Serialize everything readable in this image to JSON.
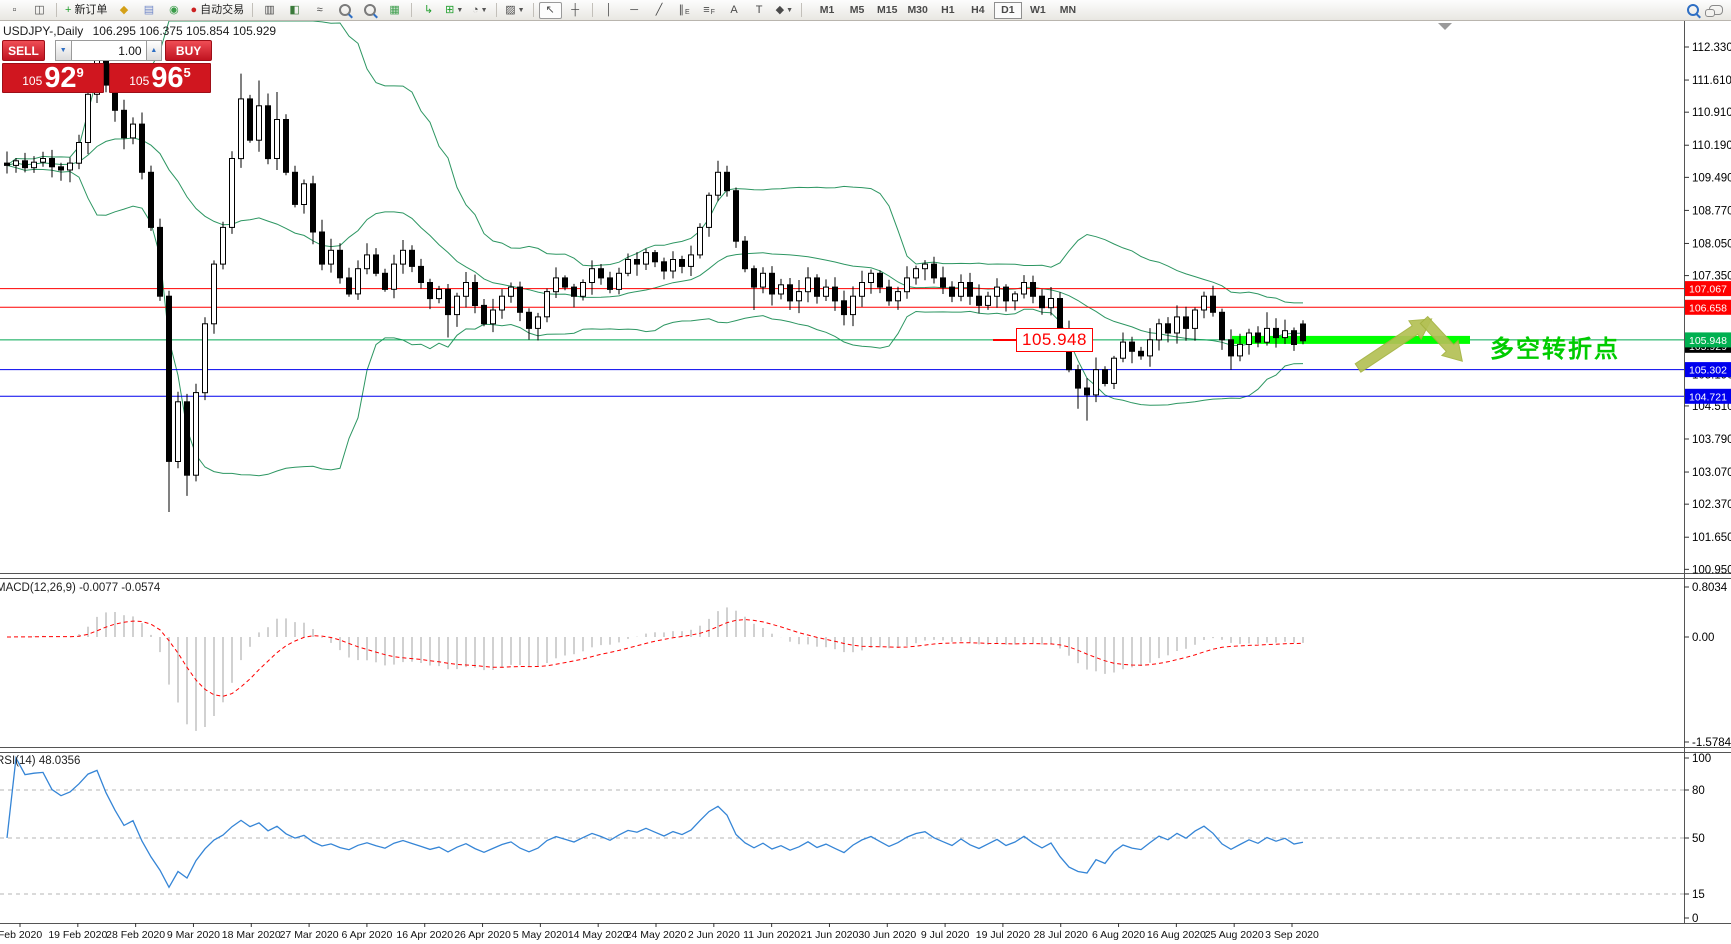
{
  "toolbar": {
    "buttons": [
      {
        "name": "new-chart",
        "glyph": "▫"
      },
      {
        "name": "chart-profile",
        "glyph": "◫"
      },
      {
        "name": "sep1",
        "sep": true
      },
      {
        "name": "new-order",
        "glyph": "+",
        "color": "#1f9e2c",
        "label": "新订单"
      },
      {
        "name": "market-watch",
        "glyph": "◆",
        "color": "#d4a017"
      },
      {
        "name": "data-window",
        "glyph": "▤",
        "color": "#6f86c8"
      },
      {
        "name": "navigator",
        "glyph": "◉",
        "color": "#3a9d4a"
      },
      {
        "name": "auto-trading",
        "glyph": "●",
        "color": "#cc2222",
        "label": "自动交易"
      },
      {
        "name": "sep2",
        "sep": true
      },
      {
        "name": "bar-chart-mode",
        "glyph": "▥"
      },
      {
        "name": "candlestick-mode",
        "glyph": "◧",
        "color": "#3a7a3a"
      },
      {
        "name": "line-chart-mode",
        "glyph": "≈"
      },
      {
        "name": "zoom-in",
        "mag": "+"
      },
      {
        "name": "zoom-out",
        "mag": "−"
      },
      {
        "name": "tile-windows",
        "glyph": "▦",
        "color": "#3a9d4a"
      },
      {
        "name": "sep3",
        "sep": true
      },
      {
        "name": "indicators",
        "glyph": "↳",
        "color": "#1f9e2c"
      },
      {
        "name": "indicator-list",
        "glyph": "⊞",
        "color": "#1f9e2c",
        "dropdown": true
      },
      {
        "name": "periods",
        "glyph": "◔",
        "dropdown": true
      },
      {
        "name": "sep4",
        "sep": true
      },
      {
        "name": "templates",
        "glyph": "▨",
        "dropdown": true
      },
      {
        "name": "sep5",
        "sep": true
      },
      {
        "name": "cursor",
        "glyph": "↖",
        "pressed": true
      },
      {
        "name": "crosshair",
        "glyph": "┼"
      },
      {
        "name": "sep6",
        "sep": true
      },
      {
        "name": "vertical-line",
        "glyph": "│"
      },
      {
        "name": "horizontal-line",
        "glyph": "─"
      },
      {
        "name": "trendline",
        "glyph": "╱"
      },
      {
        "name": "equidistant-channel",
        "glyph": "∥",
        "sub": "E"
      },
      {
        "name": "fibonacci-retracement",
        "glyph": "≡",
        "sub": "F"
      },
      {
        "name": "text",
        "glyph": "A"
      },
      {
        "name": "text-label",
        "glyph": "T"
      },
      {
        "name": "arrows-objects",
        "glyph": "◆",
        "dropdown": true
      },
      {
        "name": "sep7",
        "sep": true
      }
    ],
    "timeframes": [
      "M1",
      "M5",
      "M15",
      "M30",
      "H1",
      "H4",
      "D1",
      "W1",
      "MN"
    ],
    "active_timeframe": "D1"
  },
  "chart": {
    "symbol_period": "USDJPY-,Daily",
    "ohlc": "106.295 106.375 105.854 105.929"
  },
  "trade_panel": {
    "sell_label": "SELL",
    "buy_label": "BUY",
    "volume": "1.00",
    "spin_down": "▼",
    "spin_up": "▲",
    "sell_price": {
      "prefix": "105",
      "big": "92",
      "sup": "9"
    },
    "buy_price": {
      "prefix": "105",
      "big": "96",
      "sup": "5"
    }
  },
  "annotations": {
    "turn_price": "105.948",
    "note": "多空转折点",
    "note_color": "#00cc00",
    "arrow_color": "#b4c155",
    "highlight_color": "#00ff00"
  },
  "macd_panel": {
    "label": "MACD(12,26,9) -0.0077 -0.0574",
    "ticks": [
      "0.8034",
      "0.00",
      "-1.5784"
    ]
  },
  "rsi_panel": {
    "label": "RSI(14) 48.0356",
    "ticks": [
      "100",
      "80",
      "50",
      "15",
      "0"
    ],
    "levels": [
      80,
      50,
      15
    ]
  },
  "chart_data": {
    "type": "candlestick",
    "symbol": "USDJPY",
    "period": "Daily",
    "last_ohlc": {
      "open": 106.295,
      "high": 106.375,
      "low": 105.854,
      "close": 105.929
    },
    "closes": [
      109.75,
      109.85,
      109.7,
      109.82,
      109.9,
      109.72,
      109.65,
      109.8,
      110.25,
      111.3,
      112.05,
      111.5,
      110.95,
      110.35,
      110.65,
      109.6,
      108.4,
      106.9,
      103.3,
      104.6,
      103.0,
      104.8,
      106.3,
      107.6,
      108.4,
      109.9,
      111.2,
      110.3,
      111.05,
      109.9,
      110.75,
      109.6,
      108.9,
      109.35,
      108.3,
      107.6,
      107.9,
      107.3,
      106.95,
      107.5,
      107.8,
      107.4,
      107.05,
      107.6,
      107.9,
      107.55,
      107.2,
      106.85,
      107.05,
      106.5,
      106.9,
      107.2,
      106.7,
      106.3,
      106.6,
      106.9,
      107.1,
      106.55,
      106.2,
      106.45,
      107.0,
      107.3,
      107.1,
      106.9,
      107.2,
      107.5,
      107.3,
      107.05,
      107.4,
      107.7,
      107.6,
      107.85,
      107.65,
      107.45,
      107.7,
      107.55,
      107.8,
      108.4,
      109.1,
      109.6,
      109.2,
      108.1,
      107.5,
      107.1,
      107.4,
      106.95,
      107.15,
      106.8,
      107.0,
      107.3,
      106.9,
      107.1,
      106.8,
      106.5,
      106.9,
      107.2,
      107.4,
      107.1,
      106.8,
      107.0,
      107.3,
      107.5,
      107.6,
      107.3,
      107.1,
      106.9,
      107.2,
      106.9,
      106.7,
      106.9,
      107.1,
      106.8,
      106.95,
      107.2,
      106.9,
      106.65,
      106.85,
      106.1,
      105.3,
      104.9,
      104.75,
      105.3,
      105.0,
      105.55,
      105.9,
      105.7,
      105.6,
      105.95,
      106.3,
      106.1,
      106.45,
      106.2,
      106.6,
      106.9,
      106.55,
      105.95,
      105.6,
      105.85,
      106.1,
      105.9,
      106.2,
      106.0,
      106.15,
      105.85,
      105.93
    ],
    "open_override": {
      "144": 106.295
    },
    "high_override": {
      "10": 112.33,
      "26": 111.75,
      "28": 111.6,
      "30": 111.35,
      "79": 109.85,
      "130": 106.7,
      "133": 107.0,
      "140": 106.55,
      "144": 106.375
    },
    "low_override": {
      "18": 102.2,
      "20": 102.55,
      "49": 106.0,
      "83": 106.6,
      "119": 104.45,
      "120": 104.19,
      "136": 105.3,
      "144": 105.854
    },
    "indicators": {
      "bollinger": {
        "period": 20,
        "deviation": 2
      },
      "macd": {
        "fast": 12,
        "slow": 26,
        "signal": 9,
        "value": -0.0077,
        "signal_value": -0.0574
      },
      "rsi": {
        "period": 14,
        "value": 48.0356
      }
    },
    "levels": [
      {
        "label": "107.067",
        "value": 107.067,
        "color": "#ff0000"
      },
      {
        "label": "106.658",
        "value": 106.658,
        "color": "#ff0000"
      },
      {
        "label": "105.948",
        "value": 105.948,
        "color": "#00a651",
        "tag_color": "#00b050"
      },
      {
        "label": "105.302",
        "value": 105.302,
        "color": "#0000ee"
      },
      {
        "label": "104.721",
        "value": 104.721,
        "color": "#0000ee"
      }
    ],
    "current_price": {
      "label": "105.929",
      "value": 105.929,
      "tag_color": "#000000"
    },
    "y_axis_ticks": [
      "112.330",
      "111.610",
      "110.910",
      "110.190",
      "109.490",
      "108.770",
      "108.050",
      "107.350",
      "104.510",
      "103.790",
      "103.070",
      "102.370",
      "101.650",
      "100.950"
    ],
    "hidden_tick": "105.190",
    "x_axis_dates": [
      "Feb 2020",
      "19 Feb 2020",
      "28 Feb 2020",
      "9 Mar 2020",
      "18 Mar 2020",
      "27 Mar 2020",
      "6 Apr 2020",
      "16 Apr 2020",
      "26 Apr 2020",
      "5 May 2020",
      "14 May 2020",
      "24 May 2020",
      "2 Jun 2020",
      "11 Jun 2020",
      "21 Jun 2020",
      "30 Jun 2020",
      "9 Jul 2020",
      "19 Jul 2020",
      "28 Jul 2020",
      "6 Aug 2020",
      "16 Aug 2020",
      "25 Aug 2020",
      "3 Sep 2020"
    ],
    "y_axis_range": [
      100.95,
      112.33
    ]
  }
}
